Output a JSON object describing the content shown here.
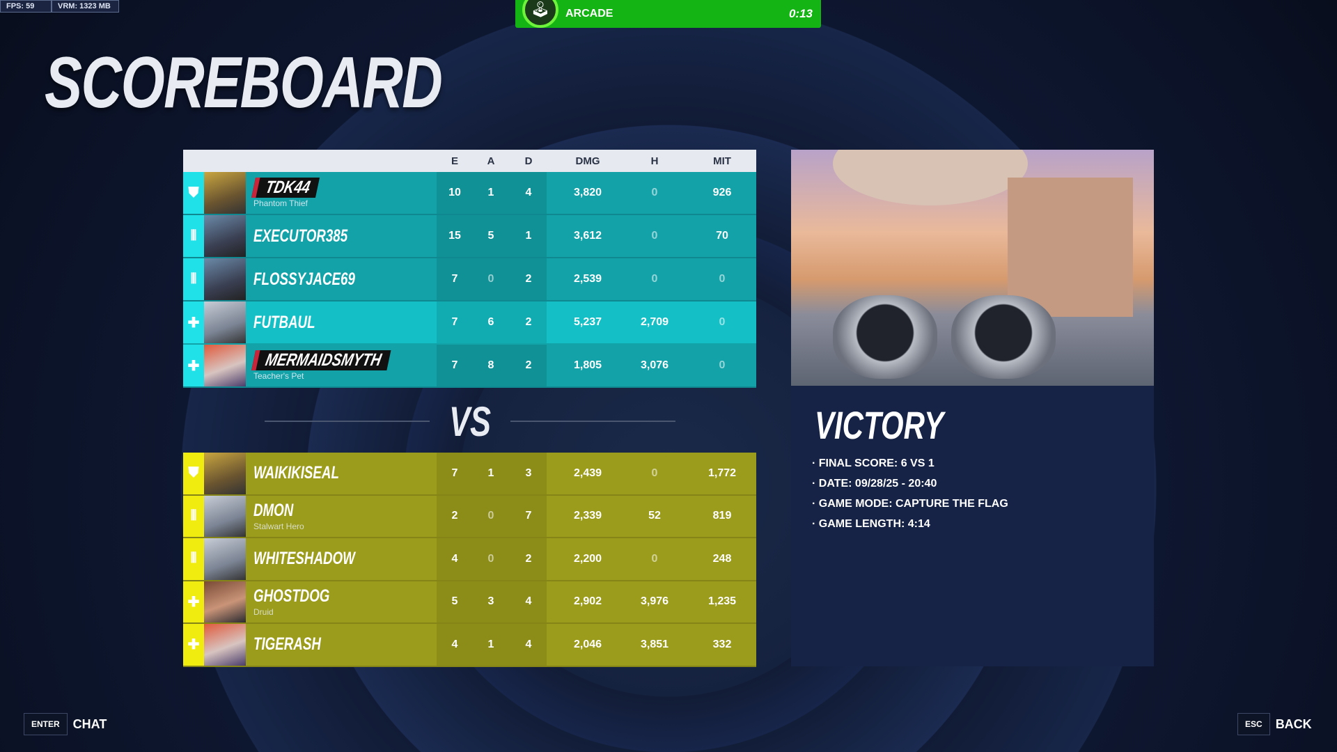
{
  "hud": {
    "fps": "FPS: 59",
    "vram": "VRM: 1323 MB"
  },
  "mode_bar": {
    "icon": "joystick-icon",
    "label": "ARCADE",
    "time": "0:13",
    "color": "#14b414"
  },
  "title": "SCOREBOARD",
  "columns": [
    "E",
    "A",
    "D",
    "DMG",
    "H",
    "MIT"
  ],
  "team1": {
    "color": "#12a2a8",
    "players": [
      {
        "role": "tank",
        "name": "TDK44",
        "subtitle": "Phantom Thief",
        "stats": [
          "10",
          "1",
          "4",
          "3,820",
          "0",
          "926"
        ]
      },
      {
        "role": "damage",
        "name": "EXECUTOR385",
        "subtitle": "",
        "stats": [
          "15",
          "5",
          "1",
          "3,612",
          "0",
          "70"
        ]
      },
      {
        "role": "damage",
        "name": "FLOSSYJACE69",
        "subtitle": "",
        "stats": [
          "7",
          "0",
          "2",
          "2,539",
          "0",
          "0"
        ]
      },
      {
        "role": "support",
        "name": "FUTBAUL",
        "subtitle": "",
        "stats": [
          "7",
          "6",
          "2",
          "5,237",
          "2,709",
          "0"
        ]
      },
      {
        "role": "support",
        "name": "MERMAIDSMYTH",
        "subtitle": "Teacher's Pet",
        "stats": [
          "7",
          "8",
          "2",
          "1,805",
          "3,076",
          "0"
        ]
      }
    ]
  },
  "vs": "VS",
  "team2": {
    "color": "#9c9c1c",
    "players": [
      {
        "role": "tank",
        "name": "WAIKIKISEAL",
        "subtitle": "",
        "stats": [
          "7",
          "1",
          "3",
          "2,439",
          "0",
          "1,772"
        ]
      },
      {
        "role": "damage",
        "name": "DMON",
        "subtitle": "Stalwart Hero",
        "stats": [
          "2",
          "0",
          "7",
          "2,339",
          "52",
          "819"
        ]
      },
      {
        "role": "damage",
        "name": "WHITESHADOW",
        "subtitle": "",
        "stats": [
          "4",
          "0",
          "2",
          "2,200",
          "0",
          "248"
        ]
      },
      {
        "role": "support",
        "name": "GHOSTDOG",
        "subtitle": "Druid",
        "stats": [
          "5",
          "3",
          "4",
          "2,902",
          "3,976",
          "1,235"
        ]
      },
      {
        "role": "support",
        "name": "TIGERASH",
        "subtitle": "",
        "stats": [
          "4",
          "1",
          "4",
          "2,046",
          "3,851",
          "332"
        ]
      }
    ]
  },
  "result": {
    "title": "VICTORY",
    "details": [
      "· FINAL SCORE: 6 VS 1",
      "· DATE: 09/28/25 - 20:40",
      "· GAME MODE: CAPTURE THE FLAG",
      "· GAME LENGTH: 4:14"
    ]
  },
  "footer": {
    "chat_key": "ENTER",
    "chat_label": "CHAT",
    "back_key": "ESC",
    "back_label": "BACK"
  }
}
